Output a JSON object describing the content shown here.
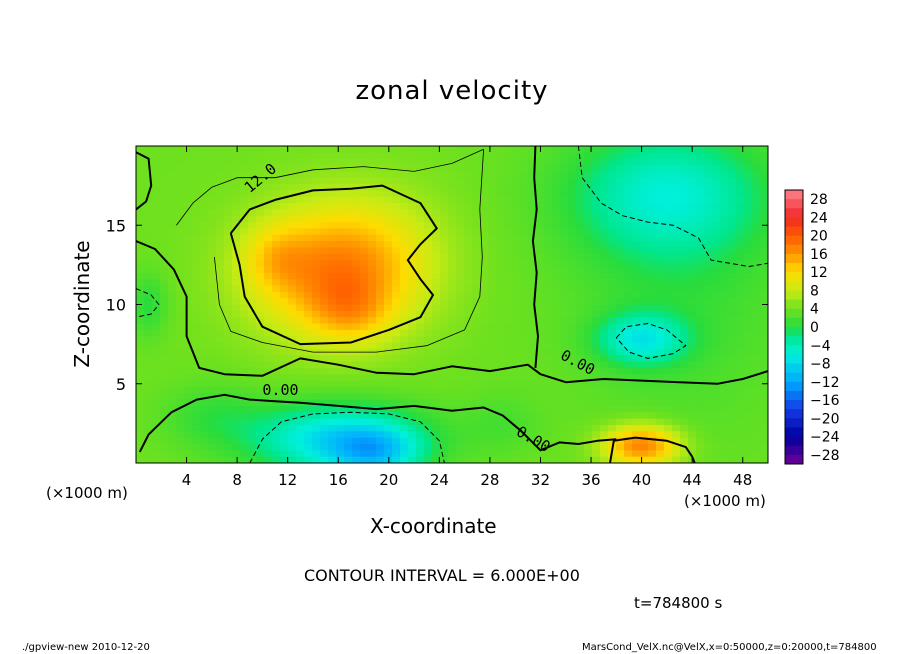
{
  "chart_data": {
    "type": "heatmap",
    "title": "zonal velocity",
    "xlabel": "X-coordinate",
    "ylabel": "Z-coordinate",
    "x_unit_left": "(×1000 m)",
    "x_unit_right": "(×1000 m)",
    "xlim": [
      0,
      50
    ],
    "ylim": [
      0,
      20
    ],
    "xticks": [
      4,
      8,
      12,
      16,
      20,
      24,
      28,
      32,
      36,
      40,
      44,
      48
    ],
    "yticks": [
      5,
      10,
      15
    ],
    "colorbar": {
      "ticks": [
        28,
        24,
        20,
        16,
        12,
        8,
        4,
        0,
        -4,
        -8,
        -12,
        -16,
        -20,
        -24,
        -28
      ],
      "range": [
        -30,
        30
      ]
    },
    "contour_labels": [
      "12.0",
      "0.00",
      "0.00",
      "0.00"
    ],
    "contour_interval_text": "CONTOUR INTERVAL = 6.000E+00",
    "time_text": "t=784800 s",
    "field": {
      "background": 4,
      "features": [
        {
          "x": 15.5,
          "y": 12.0,
          "rx": 6.5,
          "ry": 4.0,
          "amp": 12
        },
        {
          "x": 17.0,
          "y": 9.5,
          "rx": 3.2,
          "ry": 2.0,
          "amp": 5
        },
        {
          "x": 11.0,
          "y": 13.0,
          "rx": 2.5,
          "ry": 2.0,
          "amp": 4
        },
        {
          "x": 19.0,
          "y": 13.5,
          "rx": 6.0,
          "ry": 4.0,
          "amp": 3
        },
        {
          "x": 16.0,
          "y": 1.5,
          "rx": 7.0,
          "ry": 2.2,
          "amp": -12
        },
        {
          "x": 19.0,
          "y": 0.6,
          "rx": 3.5,
          "ry": 1.6,
          "amp": -8
        },
        {
          "x": 40.0,
          "y": 1.1,
          "rx": 3.0,
          "ry": 1.3,
          "amp": 14
        },
        {
          "x": 40.0,
          "y": 7.8,
          "rx": 3.5,
          "ry": 1.6,
          "amp": -9
        },
        {
          "x": 42.0,
          "y": 17.0,
          "rx": 8.0,
          "ry": 4.0,
          "amp": -8
        },
        {
          "x": 43.0,
          "y": 11.0,
          "rx": 9.0,
          "ry": 9.0,
          "amp": -3
        },
        {
          "x": 1.0,
          "y": 10.0,
          "rx": 1.5,
          "ry": 2.0,
          "amp": -4
        },
        {
          "x": 6.0,
          "y": 3.0,
          "rx": 4.0,
          "ry": 2.0,
          "amp": -3
        },
        {
          "x": 29.0,
          "y": 2.5,
          "rx": 3.0,
          "ry": 2.0,
          "amp": -2
        }
      ]
    },
    "contours": [
      {
        "name": "12.0",
        "style": "thick",
        "pts": [
          [
            7.5,
            14.5
          ],
          [
            9,
            16
          ],
          [
            11,
            16.6
          ],
          [
            14,
            17.2
          ],
          [
            17,
            17.3
          ],
          [
            19.5,
            17.5
          ],
          [
            22.5,
            16.4
          ],
          [
            23.8,
            14.8
          ],
          [
            22.5,
            13.8
          ],
          [
            21.5,
            12.8
          ],
          [
            22.5,
            11.6
          ],
          [
            23.5,
            10.6
          ],
          [
            22.5,
            9.2
          ],
          [
            20,
            8.4
          ],
          [
            17,
            7.6
          ],
          [
            13,
            7.5
          ],
          [
            10,
            8.6
          ],
          [
            8.6,
            10.5
          ],
          [
            8.2,
            12.5
          ],
          [
            7.5,
            14.5
          ]
        ]
      },
      {
        "name": "0.00 upper",
        "style": "thick",
        "pts": [
          [
            0,
            14
          ],
          [
            1.5,
            13.5
          ],
          [
            3,
            12.2
          ],
          [
            4,
            10.5
          ],
          [
            4,
            8
          ],
          [
            5,
            6
          ],
          [
            7,
            5.6
          ],
          [
            10,
            5.5
          ],
          [
            13,
            6.6
          ],
          [
            16,
            6.2
          ],
          [
            19,
            5.7
          ],
          [
            22,
            5.6
          ],
          [
            25,
            6.1
          ],
          [
            28,
            5.8
          ],
          [
            31,
            6.2
          ],
          [
            32,
            5.6
          ],
          [
            34,
            5.1
          ],
          [
            37,
            5.3
          ],
          [
            40,
            5.2
          ],
          [
            43,
            5.1
          ],
          [
            46,
            5.0
          ],
          [
            48,
            5.3
          ],
          [
            50,
            5.8
          ]
        ]
      },
      {
        "name": "0.00 vertical",
        "style": "thick",
        "pts": [
          [
            31.6,
            20
          ],
          [
            31.5,
            18
          ],
          [
            31.7,
            16
          ],
          [
            31.4,
            14
          ],
          [
            31.7,
            12
          ],
          [
            31.5,
            10
          ],
          [
            31.8,
            8
          ],
          [
            31.6,
            6
          ]
        ]
      },
      {
        "name": "0.00 lower",
        "style": "thick",
        "pts": [
          [
            0.3,
            0.7
          ],
          [
            1,
            1.8
          ],
          [
            2.8,
            3.2
          ],
          [
            4.8,
            4.0
          ],
          [
            7,
            4.3
          ],
          [
            9,
            4.0
          ],
          [
            11,
            3.9
          ],
          [
            13,
            3.8
          ],
          [
            16,
            3.6
          ],
          [
            19,
            3.4
          ],
          [
            22,
            3.6
          ],
          [
            25,
            3.3
          ],
          [
            27.5,
            3.5
          ],
          [
            29,
            3.0
          ],
          [
            30.5,
            2.0
          ],
          [
            32,
            0.8
          ],
          [
            33.5,
            1.3
          ],
          [
            35,
            1.2
          ],
          [
            36.5,
            1.4
          ],
          [
            38,
            1.5
          ]
        ]
      },
      {
        "name": "0.00 left",
        "style": "thick",
        "pts": [
          [
            0,
            19.6
          ],
          [
            1,
            19.2
          ],
          [
            1.2,
            17.5
          ],
          [
            0.8,
            16.5
          ],
          [
            0,
            16
          ]
        ]
      },
      {
        "name": "warm patch",
        "style": "thick",
        "pts": [
          [
            37.5,
            0
          ],
          [
            37.8,
            1.4
          ],
          [
            39.5,
            1.6
          ],
          [
            42,
            1.4
          ],
          [
            43.5,
            1.0
          ],
          [
            44,
            0.4
          ],
          [
            44.2,
            0
          ]
        ]
      },
      {
        "name": "6 contour",
        "style": "thin",
        "pts": [
          [
            3.2,
            15
          ],
          [
            4.5,
            16.4
          ],
          [
            6,
            17.4
          ],
          [
            8,
            18.0
          ],
          [
            11,
            18.0
          ],
          [
            14,
            18.5
          ],
          [
            18,
            18.7
          ],
          [
            22,
            18.4
          ],
          [
            25,
            18.9
          ],
          [
            27.5,
            19.8
          ]
        ]
      },
      {
        "name": "6 contour lower",
        "style": "thin",
        "pts": [
          [
            6.2,
            13
          ],
          [
            6.6,
            10
          ],
          [
            7.5,
            8.3
          ],
          [
            10,
            7.6
          ],
          [
            14,
            7.0
          ],
          [
            19,
            7.0
          ],
          [
            23,
            7.4
          ],
          [
            26,
            8.4
          ],
          [
            27.2,
            10.5
          ],
          [
            27.4,
            13
          ],
          [
            27.2,
            16
          ],
          [
            27.5,
            19.8
          ]
        ]
      },
      {
        "name": "-6 dashed",
        "style": "dashed",
        "pts": [
          [
            9,
            0
          ],
          [
            10,
            1.5
          ],
          [
            11.5,
            2.6
          ],
          [
            14,
            3.1
          ],
          [
            17,
            3.2
          ],
          [
            20,
            3.1
          ],
          [
            22.5,
            2.6
          ],
          [
            24,
            1.4
          ],
          [
            24.4,
            0
          ]
        ]
      },
      {
        "name": "-6 right",
        "style": "dashed",
        "pts": [
          [
            35,
            20
          ],
          [
            35.3,
            18
          ],
          [
            36.8,
            16.4
          ],
          [
            38.5,
            15.6
          ],
          [
            40.5,
            15.2
          ],
          [
            42.5,
            15.0
          ],
          [
            44.5,
            14.2
          ],
          [
            45.5,
            12.8
          ],
          [
            47,
            12.6
          ],
          [
            48.5,
            12.4
          ],
          [
            50,
            12.6
          ]
        ]
      },
      {
        "name": "-6 blob",
        "style": "dashed",
        "pts": [
          [
            38,
            7.9
          ],
          [
            38.8,
            8.6
          ],
          [
            40.5,
            8.8
          ],
          [
            42,
            8.4
          ],
          [
            43.5,
            7.4
          ],
          [
            42.5,
            6.9
          ],
          [
            40.5,
            6.6
          ],
          [
            39,
            7.0
          ],
          [
            38,
            7.9
          ]
        ]
      },
      {
        "name": "-6 left",
        "style": "dashed",
        "pts": [
          [
            0,
            11
          ],
          [
            1.2,
            10.6
          ],
          [
            1.8,
            10.0
          ],
          [
            1.2,
            9.4
          ],
          [
            0,
            9.2
          ]
        ]
      }
    ]
  },
  "footer": {
    "left": "./gpview-new   2010-12-20",
    "right": "MarsCond_VelX.nc@VelX,x=0:50000,z=0:20000,t=784800"
  }
}
